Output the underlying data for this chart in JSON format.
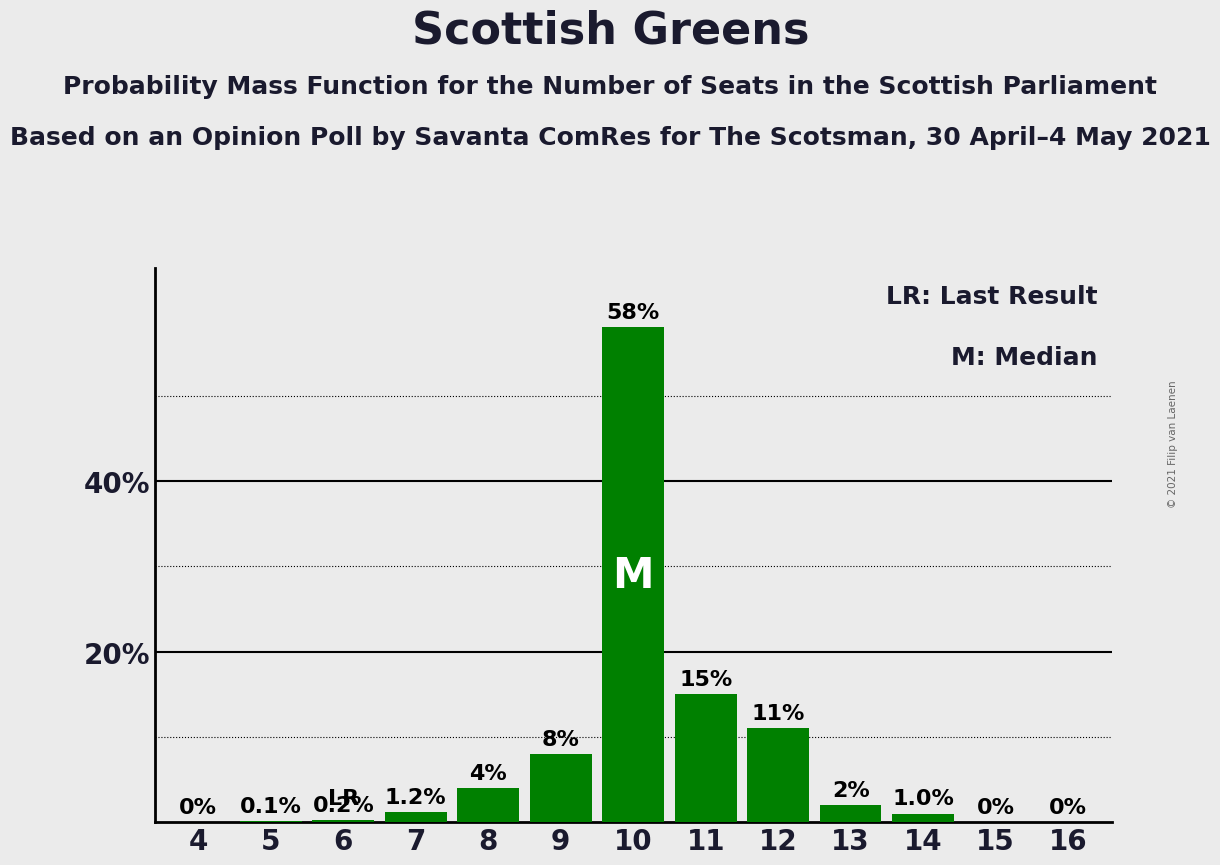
{
  "title": "Scottish Greens",
  "subtitle1": "Probability Mass Function for the Number of Seats in the Scottish Parliament",
  "subtitle2": "Based on an Opinion Poll by Savanta ComRes for The Scotsman, 30 April–4 May 2021",
  "copyright": "© 2021 Filip van Laenen",
  "legend_lr": "LR: Last Result",
  "legend_m": "M: Median",
  "categories": [
    4,
    5,
    6,
    7,
    8,
    9,
    10,
    11,
    12,
    13,
    14,
    15,
    16
  ],
  "values": [
    0.0,
    0.1,
    0.2,
    1.2,
    4.0,
    8.0,
    58.0,
    15.0,
    11.0,
    2.0,
    1.0,
    0.0,
    0.0
  ],
  "labels": [
    "0%",
    "0.1%",
    "0.2%",
    "1.2%",
    "4%",
    "8%",
    "58%",
    "15%",
    "11%",
    "2%",
    "1.0%",
    "0%",
    "0%"
  ],
  "bar_color": "#008000",
  "background_color": "#ebebeb",
  "median_seat": 10,
  "lr_seat": 6,
  "ytick_positions": [
    0,
    10,
    20,
    30,
    40,
    50,
    60
  ],
  "ytick_labels": [
    "",
    "",
    "20%",
    "",
    "40%",
    "",
    ""
  ],
  "dotted_lines": [
    10,
    30,
    50
  ],
  "solid_lines": [
    20,
    40
  ],
  "ylim": [
    0,
    65
  ],
  "title_fontsize": 32,
  "subtitle_fontsize": 18,
  "bar_label_fontsize": 16,
  "axis_tick_fontsize": 20,
  "legend_fontsize": 18
}
